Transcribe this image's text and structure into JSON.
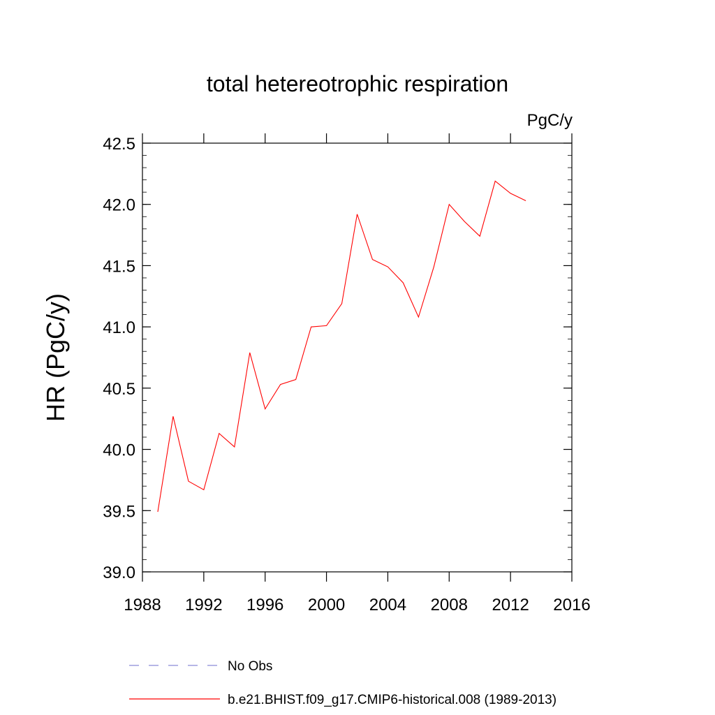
{
  "chart_data": {
    "type": "line",
    "title": "total hetereotrophic respiration",
    "units_label": "PgC/y",
    "xlabel": "",
    "ylabel": "HR  (PgC/y)",
    "xlim": [
      1988,
      2016
    ],
    "ylim": [
      39.0,
      42.5
    ],
    "x_ticks": [
      1988,
      1992,
      1996,
      2000,
      2004,
      2008,
      2012,
      2016
    ],
    "y_ticks": [
      "39.0",
      "39.5",
      "40.0",
      "40.5",
      "41.0",
      "41.5",
      "42.0",
      "42.5"
    ],
    "grid": false,
    "legend_position": "bottom",
    "series": [
      {
        "name": "b.e21.BHIST.f09_g17.CMIP6-historical.008 (1989-2013)",
        "color": "#ff0000",
        "style": "solid",
        "x": [
          1989,
          1990,
          1991,
          1992,
          1993,
          1994,
          1995,
          1996,
          1997,
          1998,
          1999,
          2000,
          2001,
          2002,
          2003,
          2004,
          2005,
          2006,
          2007,
          2008,
          2009,
          2010,
          2011,
          2012,
          2013
        ],
        "values": [
          39.49,
          40.27,
          39.74,
          39.67,
          40.13,
          40.02,
          40.79,
          40.33,
          40.53,
          40.57,
          41.0,
          41.01,
          41.19,
          41.92,
          41.55,
          41.49,
          41.36,
          41.08,
          41.49,
          42.0,
          41.86,
          41.74,
          42.19,
          42.09,
          42.03
        ]
      },
      {
        "name": "No Obs",
        "color": "#8a8ad8",
        "style": "dashed",
        "x": [],
        "values": []
      }
    ]
  }
}
